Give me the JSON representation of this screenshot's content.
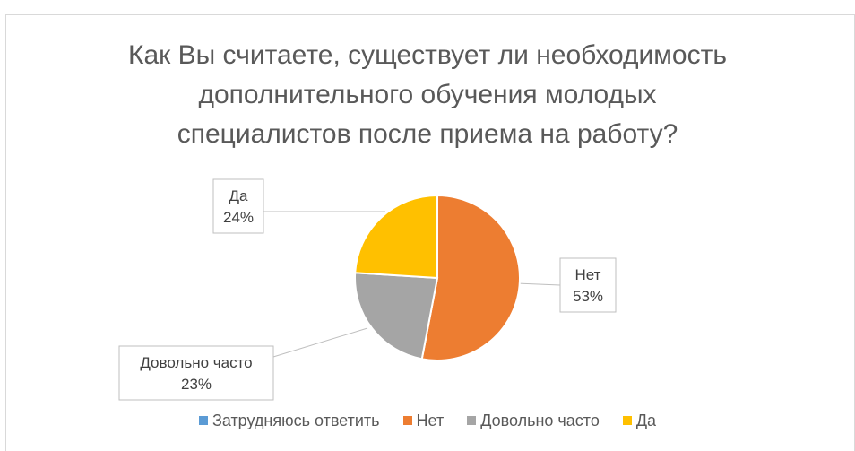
{
  "chart_data": {
    "type": "pie",
    "title": "Как Вы считаете, существует ли необходимость дополнительного обучения молодых специалистов после приема на работу?",
    "title_lines": [
      "Как Вы считаете, существует ли необходимость",
      "дополнительного обучения молодых",
      "специалистов после приема на работу?"
    ],
    "categories": [
      "Затрудняюсь ответить",
      "Нет",
      "Довольно часто",
      "Да"
    ],
    "values": [
      0,
      53,
      23,
      24
    ],
    "colors": [
      "#5b9bd5",
      "#ed7d31",
      "#a5a5a5",
      "#ffc000"
    ],
    "data_labels": [
      {
        "category": "Нет",
        "text": "Нет",
        "value_text": "53%"
      },
      {
        "category": "Довольно часто",
        "text": "Довольно часто",
        "value_text": "23%"
      },
      {
        "category": "Да",
        "text": "Да",
        "value_text": "24%"
      }
    ],
    "legend_position": "bottom"
  }
}
